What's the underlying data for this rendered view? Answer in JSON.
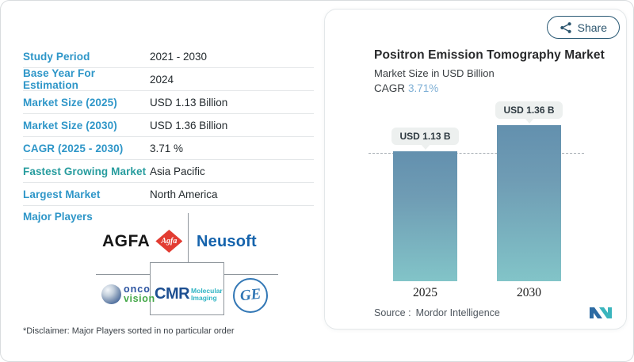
{
  "left_panel": {
    "rows": [
      {
        "label": "Study Period",
        "value": "2021 - 2030"
      },
      {
        "label": "Base Year For Estimation",
        "value": "2024"
      },
      {
        "label": "Market Size (2025)",
        "value": "USD 1.13 Billion"
      },
      {
        "label": "Market Size (2030)",
        "value": "USD 1.36 Billion"
      },
      {
        "label": "CAGR (2025 - 2030)",
        "value": "3.71 %"
      },
      {
        "label": "Fastest Growing Market",
        "value": "Asia Pacific",
        "accent": "teal"
      },
      {
        "label": "Largest Market",
        "value": "North America"
      }
    ],
    "major_players_label": "Major Players",
    "players": {
      "agfa_text": "AGFA",
      "agfa_diamond_text": "Agfa",
      "neusoft": "Neusoft",
      "onco_top": "onco",
      "onco_bottom": "vision",
      "cmr": "CMR",
      "cmr_sub1": "Molecular",
      "cmr_sub2": "Imaging",
      "ge": "GE"
    },
    "disclaimer": "*Disclaimer: Major Players sorted in no particular order"
  },
  "chart_card": {
    "share_label": "Share",
    "title": "Positron Emission Tomography Market",
    "subtitle": "Market Size in USD Billion",
    "cagr_label": "CAGR",
    "cagr_value": "3.71%",
    "source_label": "Source :",
    "source_value": "Mordor Intelligence"
  },
  "chart_data": {
    "type": "bar",
    "categories": [
      "2025",
      "2030"
    ],
    "values": [
      1.13,
      1.36
    ],
    "value_labels": [
      "USD 1.13 B",
      "USD 1.36 B"
    ],
    "title": "Positron Emission Tomography Market",
    "ylabel": "Market Size in USD Billion",
    "cagr": "3.71%",
    "reference_line_at": 1.13,
    "legend": "none",
    "grid": "off"
  },
  "colors": {
    "label_blue": "#2e96c8",
    "label_teal": "#279c9e",
    "cagr_value": "#7fb0d6",
    "bar_gradient_top": "#6390ae",
    "bar_gradient_bottom": "#82c4c8",
    "pill_bg": "#edf0ef",
    "share_border": "#2b5a75",
    "mordor_blue": "#2d6ba3",
    "mordor_teal": "#3ab5bd"
  }
}
